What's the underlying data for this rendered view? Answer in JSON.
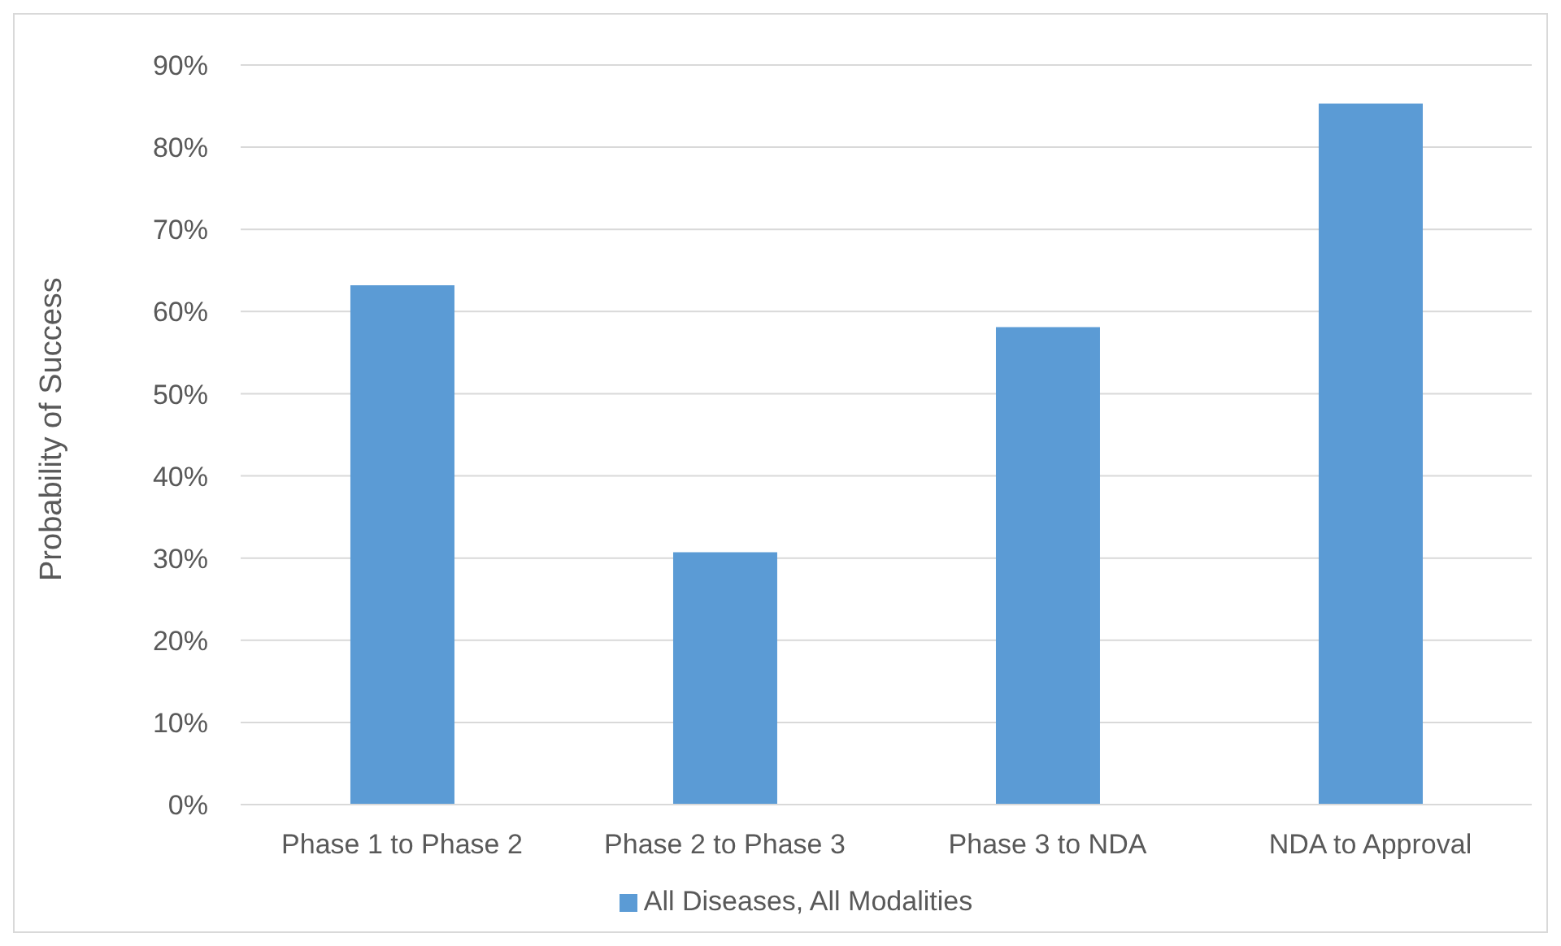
{
  "chart_data": {
    "type": "bar",
    "ylabel": "Probability of Success",
    "categories": [
      "Phase 1 to Phase 2",
      "Phase 2 to Phase 3",
      "Phase 3 to NDA",
      "NDA to Approval"
    ],
    "series": [
      {
        "name": "All Diseases, All Modalities",
        "color": "#5b9bd5",
        "values": [
          63.2,
          30.7,
          58.1,
          85.3
        ]
      }
    ],
    "ylim": [
      0,
      90
    ],
    "yticks": [
      {
        "value": 0,
        "label": "0%"
      },
      {
        "value": 10,
        "label": "10%"
      },
      {
        "value": 20,
        "label": "20%"
      },
      {
        "value": 30,
        "label": "30%"
      },
      {
        "value": 40,
        "label": "40%"
      },
      {
        "value": 50,
        "label": "50%"
      },
      {
        "value": 60,
        "label": "60%"
      },
      {
        "value": 70,
        "label": "70%"
      },
      {
        "value": 80,
        "label": "80%"
      },
      {
        "value": 90,
        "label": "90%"
      }
    ],
    "grid": "y",
    "legend": "bottom"
  }
}
